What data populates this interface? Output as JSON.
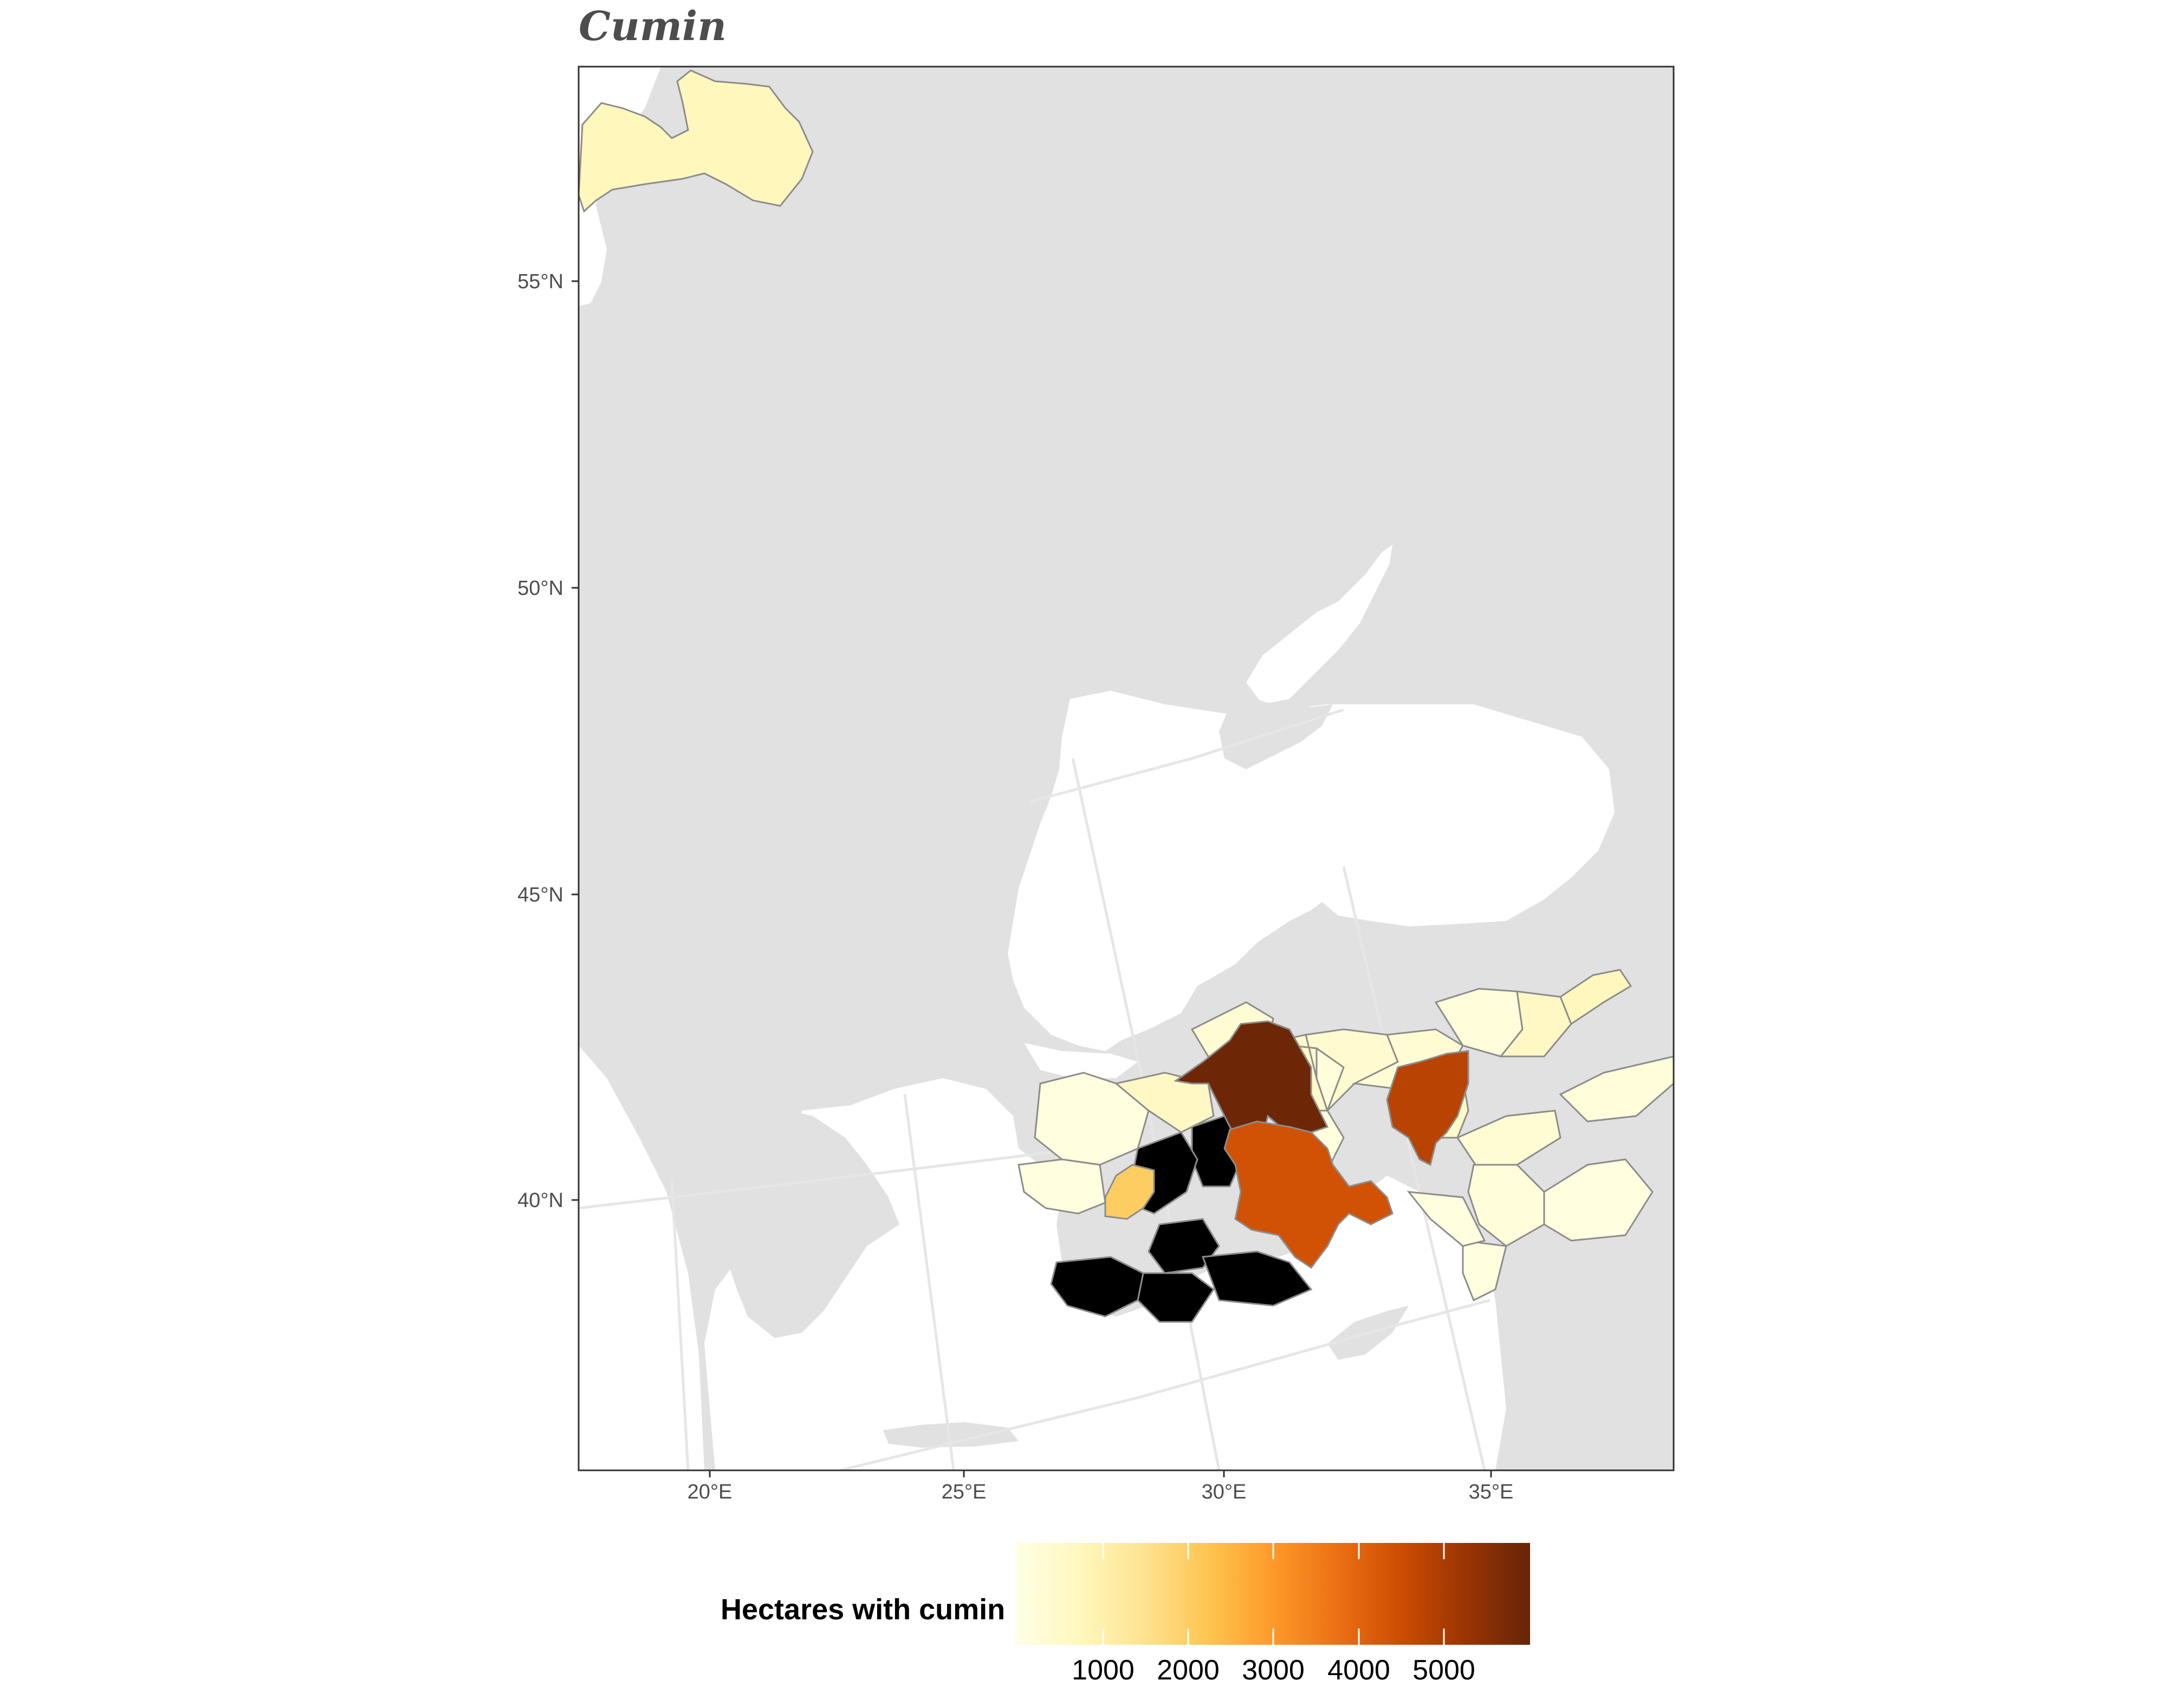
{
  "title": "Cumin",
  "axes": {
    "x_ticks": [
      "20°E",
      "25°E",
      "30°E",
      "35°E"
    ],
    "y_ticks": [
      "55°N",
      "50°N",
      "45°N",
      "40°N"
    ]
  },
  "legend": {
    "title": "Hectares with cumin",
    "ticks": [
      "1000",
      "2000",
      "3000",
      "4000",
      "5000"
    ],
    "colors": [
      "#ffffe5",
      "#fff7bc",
      "#fee391",
      "#fec44f",
      "#fe9929",
      "#ec7014",
      "#cc4c02",
      "#993404",
      "#662506"
    ]
  },
  "colors": {
    "land": "#e1e1e1",
    "sea": "#ffffff",
    "grid": "#e6e6e6",
    "border": "#8c8c8c"
  },
  "chart_data": {
    "type": "choropleth",
    "value_field": "Hectares with cumin",
    "scale": {
      "min": 0,
      "max": 5900,
      "palette": "YlOrBr"
    },
    "regions": [
      {
        "value": 5800
      },
      {
        "value": 4300
      },
      {
        "value": 4700
      },
      {
        "value": 2000
      },
      {
        "value": 500
      },
      {
        "value": 400
      },
      {
        "value": 300
      },
      {
        "value": 200
      },
      {
        "value": 600
      },
      {
        "value": 700
      },
      {
        "value": 300
      },
      {
        "value": 200
      },
      {
        "value": 100
      },
      {
        "value": 500
      },
      {
        "value": 300
      },
      {
        "value": 200
      },
      {
        "value": 100
      },
      {
        "value": 200
      },
      {
        "value": 100
      },
      {
        "value": 100
      },
      {
        "value": 100
      },
      {
        "value": 100
      },
      {
        "value": 600
      }
    ]
  }
}
